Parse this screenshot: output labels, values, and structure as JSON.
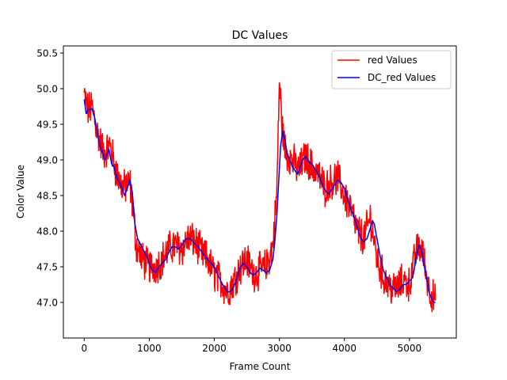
{
  "chart_data": {
    "type": "line",
    "title": "DC Values",
    "xlabel": "Frame Count",
    "ylabel": "Color Value",
    "xlim": [
      -320,
      5720
    ],
    "ylim": [
      46.5,
      50.6
    ],
    "xticks": [
      0,
      1000,
      2000,
      3000,
      4000,
      5000
    ],
    "xtick_labels": [
      "0",
      "1000",
      "2000",
      "3000",
      "4000",
      "5000"
    ],
    "yticks": [
      47.0,
      47.5,
      48.0,
      48.5,
      49.0,
      49.5,
      50.0,
      50.5
    ],
    "ytick_labels": [
      "47.0",
      "47.5",
      "48.0",
      "48.5",
      "49.0",
      "49.5",
      "50.0",
      "50.5"
    ],
    "grid": false,
    "legend_position": "top-right",
    "series": [
      {
        "name": "red Values",
        "color": "#ff0000",
        "noise_amplitude": 0.22,
        "x": [
          0,
          60,
          120,
          200,
          300,
          400,
          500,
          600,
          700,
          750,
          800,
          900,
          1000,
          1100,
          1200,
          1300,
          1400,
          1500,
          1600,
          1700,
          1800,
          1900,
          2000,
          2100,
          2200,
          2300,
          2400,
          2500,
          2600,
          2700,
          2800,
          2900,
          2960,
          3000,
          3050,
          3100,
          3200,
          3300,
          3400,
          3500,
          3600,
          3700,
          3800,
          3900,
          4000,
          4100,
          4200,
          4300,
          4400,
          4500,
          4600,
          4700,
          4800,
          4900,
          5000,
          5100,
          5150,
          5200,
          5300,
          5400
        ],
        "values": [
          49.9,
          49.7,
          49.75,
          49.4,
          49.1,
          49.2,
          48.8,
          48.6,
          48.7,
          48.3,
          47.8,
          47.6,
          47.5,
          47.5,
          47.6,
          47.75,
          47.8,
          47.75,
          47.9,
          47.85,
          47.7,
          47.6,
          47.4,
          47.3,
          47.15,
          47.3,
          47.5,
          47.6,
          47.4,
          47.45,
          47.5,
          47.8,
          48.5,
          50.1,
          49.4,
          49.1,
          49.0,
          48.85,
          49.05,
          48.9,
          48.8,
          48.6,
          48.7,
          48.75,
          48.5,
          48.3,
          48.0,
          47.9,
          48.2,
          47.6,
          47.35,
          47.2,
          47.2,
          47.3,
          47.25,
          47.7,
          47.8,
          47.7,
          47.2,
          47.0
        ]
      },
      {
        "name": "DC_red Values",
        "color": "#0000ff",
        "x": [
          0,
          30,
          60,
          120,
          160,
          200,
          240,
          280,
          320,
          380,
          420,
          460,
          500,
          560,
          620,
          660,
          700,
          740,
          780,
          820,
          900,
          960,
          1000,
          1050,
          1100,
          1150,
          1200,
          1250,
          1300,
          1350,
          1400,
          1450,
          1500,
          1550,
          1600,
          1650,
          1700,
          1750,
          1800,
          1850,
          1900,
          1950,
          2000,
          2050,
          2100,
          2150,
          2200,
          2250,
          2300,
          2350,
          2400,
          2450,
          2500,
          2550,
          2600,
          2650,
          2700,
          2750,
          2800,
          2850,
          2900,
          2930,
          2960,
          2990,
          3020,
          3050,
          3080,
          3120,
          3160,
          3200,
          3240,
          3280,
          3320,
          3360,
          3400,
          3440,
          3480,
          3520,
          3560,
          3600,
          3640,
          3680,
          3720,
          3760,
          3800,
          3850,
          3900,
          3950,
          4000,
          4050,
          4100,
          4150,
          4200,
          4250,
          4300,
          4350,
          4400,
          4430,
          4460,
          4500,
          4550,
          4600,
          4650,
          4700,
          4750,
          4800,
          4850,
          4900,
          4950,
          5000,
          5050,
          5100,
          5140,
          5180,
          5220,
          5260,
          5300,
          5340,
          5380,
          5400
        ],
        "values": [
          49.85,
          49.65,
          49.7,
          49.72,
          49.6,
          49.38,
          49.2,
          49.1,
          49.0,
          49.15,
          48.95,
          48.9,
          48.75,
          48.65,
          48.5,
          48.6,
          48.72,
          48.55,
          48.1,
          47.9,
          47.75,
          47.65,
          47.55,
          47.45,
          47.42,
          47.5,
          47.55,
          47.6,
          47.7,
          47.78,
          47.78,
          47.75,
          47.8,
          47.88,
          47.9,
          47.88,
          47.82,
          47.78,
          47.72,
          47.65,
          47.6,
          47.55,
          47.5,
          47.4,
          47.3,
          47.22,
          47.15,
          47.15,
          47.22,
          47.35,
          47.5,
          47.55,
          47.5,
          47.42,
          47.38,
          47.42,
          47.48,
          47.45,
          47.42,
          47.45,
          47.6,
          47.85,
          48.2,
          48.7,
          49.2,
          49.4,
          49.3,
          49.1,
          49.0,
          48.9,
          48.85,
          48.8,
          48.9,
          49.0,
          49.05,
          49.0,
          48.95,
          48.92,
          48.85,
          48.8,
          48.7,
          48.62,
          48.55,
          48.52,
          48.58,
          48.65,
          48.72,
          48.68,
          48.6,
          48.45,
          48.3,
          48.2,
          48.05,
          47.9,
          47.85,
          47.9,
          48.05,
          48.15,
          48.1,
          47.9,
          47.65,
          47.45,
          47.35,
          47.25,
          47.2,
          47.15,
          47.18,
          47.25,
          47.25,
          47.3,
          47.35,
          47.6,
          47.8,
          47.75,
          47.55,
          47.35,
          47.15,
          47.05,
          47.0,
          47.0
        ]
      }
    ]
  }
}
